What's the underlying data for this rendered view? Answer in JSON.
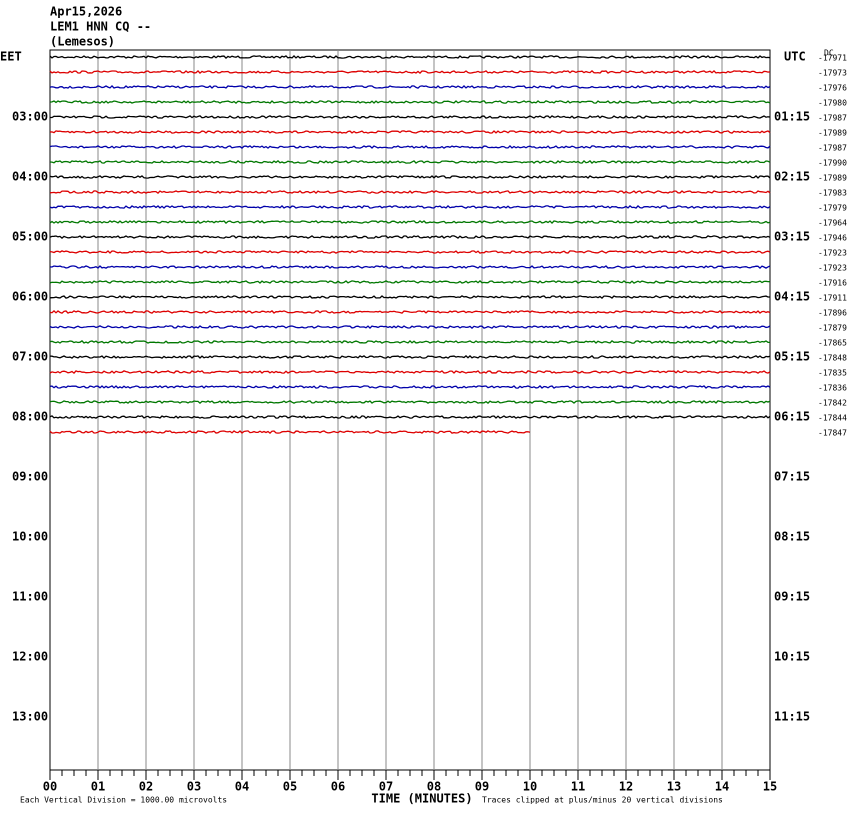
{
  "header": {
    "date": "Apr15,2026",
    "station": "LEM1 HNN CQ --",
    "location": "(Lemesos)"
  },
  "left_axis": {
    "title": "EET",
    "labels": [
      "03:00",
      "04:00",
      "05:00",
      "06:00",
      "07:00",
      "08:00",
      "09:00",
      "10:00",
      "11:00",
      "12:00",
      "13:00"
    ]
  },
  "right_axis": {
    "title": "UTC",
    "labels": [
      "01:15",
      "02:15",
      "03:15",
      "04:15",
      "05:15",
      "06:15",
      "07:15",
      "08:15",
      "09:15",
      "10:15",
      "11:15"
    ]
  },
  "dc": {
    "title": "DC",
    "values": [
      "-17971",
      "-17973",
      "-17976",
      "-17980",
      "-17987",
      "-17989",
      "-17987",
      "-17990",
      "-17989",
      "-17983",
      "-17979",
      "-17964",
      "-17946",
      "-17923",
      "-17923",
      "-17916",
      "-17911",
      "-17896",
      "-17879",
      "-17865",
      "-17848",
      "-17835",
      "-17836",
      "-17842",
      "-17844",
      "-17847"
    ]
  },
  "x_axis": {
    "title": "TIME (MINUTES)",
    "labels": [
      "00",
      "01",
      "02",
      "03",
      "04",
      "05",
      "06",
      "07",
      "08",
      "09",
      "10",
      "11",
      "12",
      "13",
      "14",
      "15"
    ]
  },
  "footer": {
    "scale": "Each Vertical Division = 1000.00 microvolts",
    "clip": "Traces clipped at plus/minus 20 vertical divisions"
  }
}
